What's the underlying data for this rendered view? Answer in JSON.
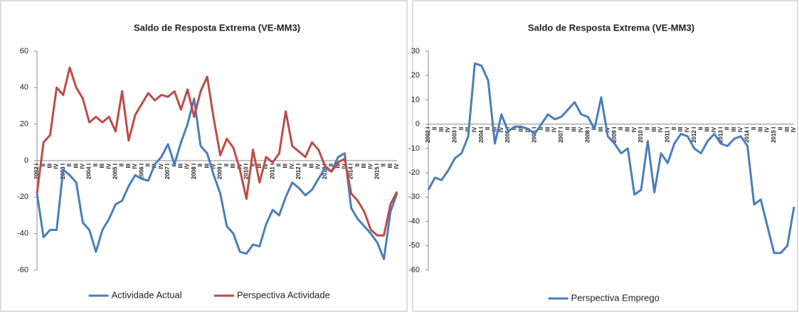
{
  "chart_data": [
    {
      "type": "line",
      "title": "Saldo de Resposta Extrema (VE-MM3)",
      "categories": [
        "2002 I",
        "II",
        "III",
        "IV",
        "2003 I",
        "II",
        "III",
        "IV",
        "2004 I",
        "II",
        "III",
        "IV",
        "2005 I",
        "II",
        "III",
        "IV",
        "2006 I",
        "II",
        "III",
        "IV",
        "2007 I",
        "II",
        "III",
        "IV",
        "2008 I",
        "II",
        "III",
        "IV",
        "2009 I",
        "II",
        "III",
        "IV",
        "2010 I",
        "II",
        "III",
        "IV",
        "2011 I",
        "II",
        "III",
        "IV",
        "2012 I",
        "II",
        "III",
        "IV",
        "2013 I",
        "II",
        "III",
        "IV",
        "2014 I",
        "II",
        "III",
        "IV",
        "2015 I",
        "II",
        "III",
        "IV"
      ],
      "series": [
        {
          "name": "Actividade Actual",
          "color": "#4a7ebb",
          "values": [
            -18,
            -42,
            -38,
            -38,
            -5,
            -8,
            -12,
            -34,
            -38,
            -50,
            -38,
            -32,
            -24,
            -22,
            -14,
            -8,
            -10,
            -11,
            -2,
            2,
            9,
            -2,
            10,
            20,
            34,
            8,
            4,
            -8,
            -18,
            -36,
            -40,
            -50,
            -51,
            -46,
            -47,
            -35,
            -27,
            -30,
            -20,
            -12,
            -15,
            -19,
            -16,
            -10,
            -4,
            -6,
            2,
            4,
            -26,
            -32,
            -36,
            -40,
            -45,
            -54,
            -28,
            -18
          ]
        },
        {
          "name": "Perspectiva Actividade",
          "color": "#be4b48",
          "values": [
            -18,
            10,
            14,
            40,
            36,
            51,
            40,
            34,
            21,
            24,
            21,
            24,
            16,
            38,
            11,
            25,
            31,
            37,
            33,
            36,
            35,
            38,
            28,
            39,
            24,
            38,
            46,
            23,
            3,
            12,
            7,
            -5,
            -21,
            6,
            -12,
            2,
            -1,
            4,
            27,
            8,
            5,
            2,
            10,
            6,
            -3,
            -6,
            -1,
            1,
            -18,
            -22,
            -28,
            -38,
            -41,
            -41,
            -24,
            -17
          ]
        }
      ],
      "ylim": [
        -60,
        60
      ],
      "yticks": [
        -60,
        -40,
        -20,
        0,
        20,
        40,
        60
      ]
    },
    {
      "type": "line",
      "title": "Saldo de Resposta Extrema (VE-MM3)",
      "categories": [
        "2002 I",
        "II",
        "III",
        "IV",
        "2003 I",
        "II",
        "III",
        "IV",
        "2004 I",
        "II",
        "III",
        "IV",
        "2005 I",
        "II",
        "III",
        "IV",
        "2006 I",
        "II",
        "III",
        "IV",
        "2007 I",
        "II",
        "III",
        "IV",
        "2008 I",
        "II",
        "III",
        "IV",
        "2009 I",
        "II",
        "III",
        "IV",
        "2010 I",
        "II",
        "III",
        "IV",
        "2011 I",
        "II",
        "III",
        "IV",
        "2012 I",
        "II",
        "III",
        "IV",
        "2013 I",
        "II",
        "III",
        "IV",
        "2014 I",
        "II",
        "III",
        "IV",
        "2015 I",
        "II",
        "III",
        "IV"
      ],
      "series": [
        {
          "name": "Perspectiva Emprego",
          "color": "#4a7ebb",
          "values": [
            -27,
            -22,
            -23,
            -19,
            -14,
            -12,
            -5,
            25,
            24,
            18,
            -8,
            4,
            -3,
            -1,
            -1,
            -2,
            -4,
            0,
            4,
            2,
            3,
            6,
            9,
            4,
            3,
            -2,
            11,
            -5,
            -8,
            -12,
            -10,
            -29,
            -27,
            -7,
            -28,
            -12,
            -16,
            -8,
            -4,
            -5,
            -10,
            -12,
            -7,
            -4,
            -8,
            -9,
            -6,
            -5,
            -9,
            -33,
            -31,
            -42,
            -53,
            -53,
            -50,
            -34
          ]
        }
      ],
      "ylim": [
        -60,
        30
      ],
      "yticks": [
        -60,
        -50,
        -40,
        -30,
        -20,
        -10,
        0,
        10,
        20,
        30
      ]
    }
  ]
}
